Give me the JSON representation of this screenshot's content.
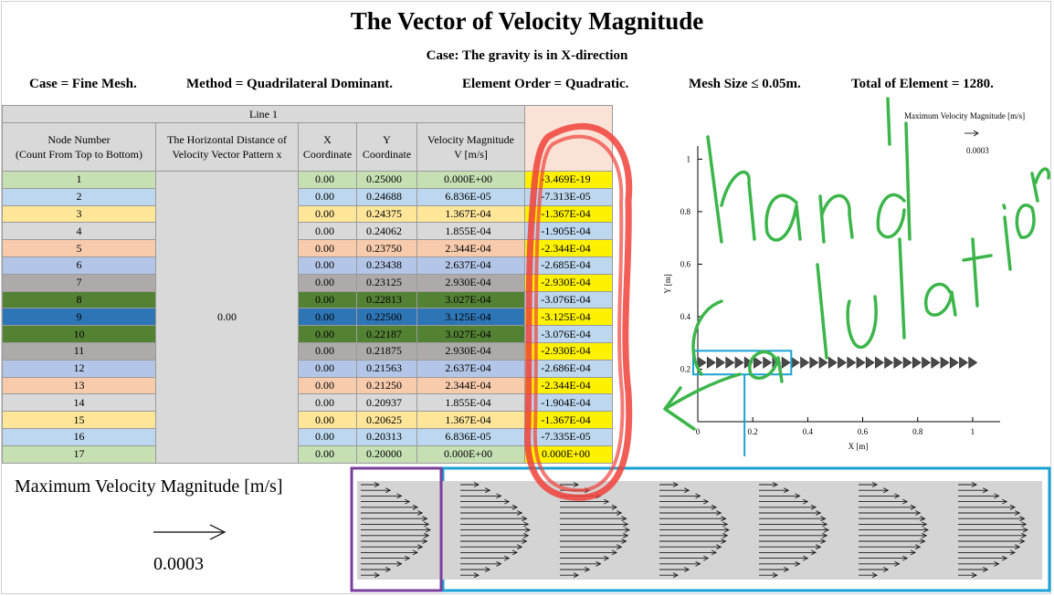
{
  "header": {
    "title": "The Vector of Velocity Magnitude",
    "subtitle": "Case: The gravity is in X-direction",
    "info": [
      "Case = Fine Mesh.",
      "Method = Quadrilateral Dominant.",
      "Element Order = Quadratic.",
      "Mesh Size ≤ 0.05m.",
      "Total of Element = 1280."
    ]
  },
  "table": {
    "group_header": "Line 1",
    "columns": [
      "Node Number (Count From Top to Bottom)",
      "The Horizontal Distance of Velocity Vector Pattern x",
      "X Coordinate",
      "Y Coordinate",
      "Velocity Magnitude V [m/s]"
    ],
    "col_lines": [
      [
        "Node Number",
        "(Count From Top to Bottom)"
      ],
      [
        "The Horizontal Distance of",
        "Velocity Vector Pattern x"
      ],
      [
        "X",
        "Coordinate"
      ],
      [
        "Y",
        "Coordinate"
      ],
      [
        "Velocity Magnitude",
        "V [m/s]"
      ]
    ],
    "horizontal_distance": "0.00",
    "row_colors": [
      "#c6e0b4",
      "#bdd7ee",
      "#ffe699",
      "#d9d9d9",
      "#f8cbad",
      "#b4c6e7",
      "#aeaaaa",
      "#548235",
      "#2e75b6",
      "#548235",
      "#aeaaaa",
      "#b4c6e7",
      "#f8cbad",
      "#d9d9d9",
      "#ffe699",
      "#bdd7ee",
      "#c6e0b4"
    ],
    "rows": [
      {
        "node": "1",
        "x": "0.00",
        "y": "0.25000",
        "v": "0.000E+00",
        "hand": "-3.469E-19"
      },
      {
        "node": "2",
        "x": "0.00",
        "y": "0.24688",
        "v": "6.836E-05",
        "hand": "-7.313E-05"
      },
      {
        "node": "3",
        "x": "0.00",
        "y": "0.24375",
        "v": "1.367E-04",
        "hand": "-1.367E-04"
      },
      {
        "node": "4",
        "x": "0.00",
        "y": "0.24062",
        "v": "1.855E-04",
        "hand": "-1.905E-04"
      },
      {
        "node": "5",
        "x": "0.00",
        "y": "0.23750",
        "v": "2.344E-04",
        "hand": "-2.344E-04"
      },
      {
        "node": "6",
        "x": "0.00",
        "y": "0.23438",
        "v": "2.637E-04",
        "hand": "-2.685E-04"
      },
      {
        "node": "7",
        "x": "0.00",
        "y": "0.23125",
        "v": "2.930E-04",
        "hand": "-2.930E-04"
      },
      {
        "node": "8",
        "x": "0.00",
        "y": "0.22813",
        "v": "3.027E-04",
        "hand": "-3.076E-04"
      },
      {
        "node": "9",
        "x": "0.00",
        "y": "0.22500",
        "v": "3.125E-04",
        "hand": "-3.125E-04"
      },
      {
        "node": "10",
        "x": "0.00",
        "y": "0.22187",
        "v": "3.027E-04",
        "hand": "-3.076E-04"
      },
      {
        "node": "11",
        "x": "0.00",
        "y": "0.21875",
        "v": "2.930E-04",
        "hand": "-2.930E-04"
      },
      {
        "node": "12",
        "x": "0.00",
        "y": "0.21563",
        "v": "2.637E-04",
        "hand": "-2.686E-04"
      },
      {
        "node": "13",
        "x": "0.00",
        "y": "0.21250",
        "v": "2.344E-04",
        "hand": "-2.344E-04"
      },
      {
        "node": "14",
        "x": "0.00",
        "y": "0.20937",
        "v": "1.855E-04",
        "hand": "-1.904E-04"
      },
      {
        "node": "15",
        "x": "0.00",
        "y": "0.20625",
        "v": "1.367E-04",
        "hand": "-1.367E-04"
      },
      {
        "node": "16",
        "x": "0.00",
        "y": "0.20313",
        "v": "6.836E-05",
        "hand": "-7.335E-05"
      },
      {
        "node": "17",
        "x": "0.00",
        "y": "0.20000",
        "v": "0.000E+00",
        "hand": "0.000E+00"
      }
    ]
  },
  "legend": {
    "label": "Maximum Velocity Magnitude [m/s]",
    "value": "0.0003"
  },
  "plot": {
    "legend_label": "Maximum Velocity Magnitude [m/s]",
    "legend_value": "0.0003",
    "xlabel": "X [m]",
    "ylabel": "Y [m]",
    "xticks": [
      "0",
      "0.2",
      "0.4",
      "0.6",
      "0.8",
      "1"
    ],
    "yticks": [
      "0.2",
      "0.4",
      "0.6",
      "0.8",
      "1"
    ]
  },
  "annotation": {
    "text": "hand Calculation",
    "color": "#3cb54a",
    "circle_color": "#f0413a"
  },
  "chart_data": {
    "type": "scatter",
    "title": "",
    "xlabel": "X [m]",
    "ylabel": "Y [m]",
    "xlim": [
      0,
      1.1
    ],
    "ylim": [
      0,
      1.05
    ],
    "series": [
      {
        "x": [
          0.0,
          0.034,
          0.068,
          0.102,
          0.136,
          0.17,
          0.204,
          0.238,
          0.272,
          0.306,
          0.34,
          0.374,
          0.408,
          0.442,
          0.476,
          0.51,
          0.544,
          0.578,
          0.612,
          0.646,
          0.68,
          0.714,
          0.748,
          0.782,
          0.816,
          0.85,
          0.884,
          0.918,
          0.952,
          0.986
        ],
        "y": [
          0.225,
          0.225,
          0.225,
          0.225,
          0.225,
          0.225,
          0.225,
          0.225,
          0.225,
          0.225,
          0.225,
          0.225,
          0.225,
          0.225,
          0.225,
          0.225,
          0.225,
          0.225,
          0.225,
          0.225,
          0.225,
          0.225,
          0.225,
          0.225,
          0.225,
          0.225,
          0.225,
          0.225,
          0.225,
          0.225
        ]
      }
    ]
  }
}
